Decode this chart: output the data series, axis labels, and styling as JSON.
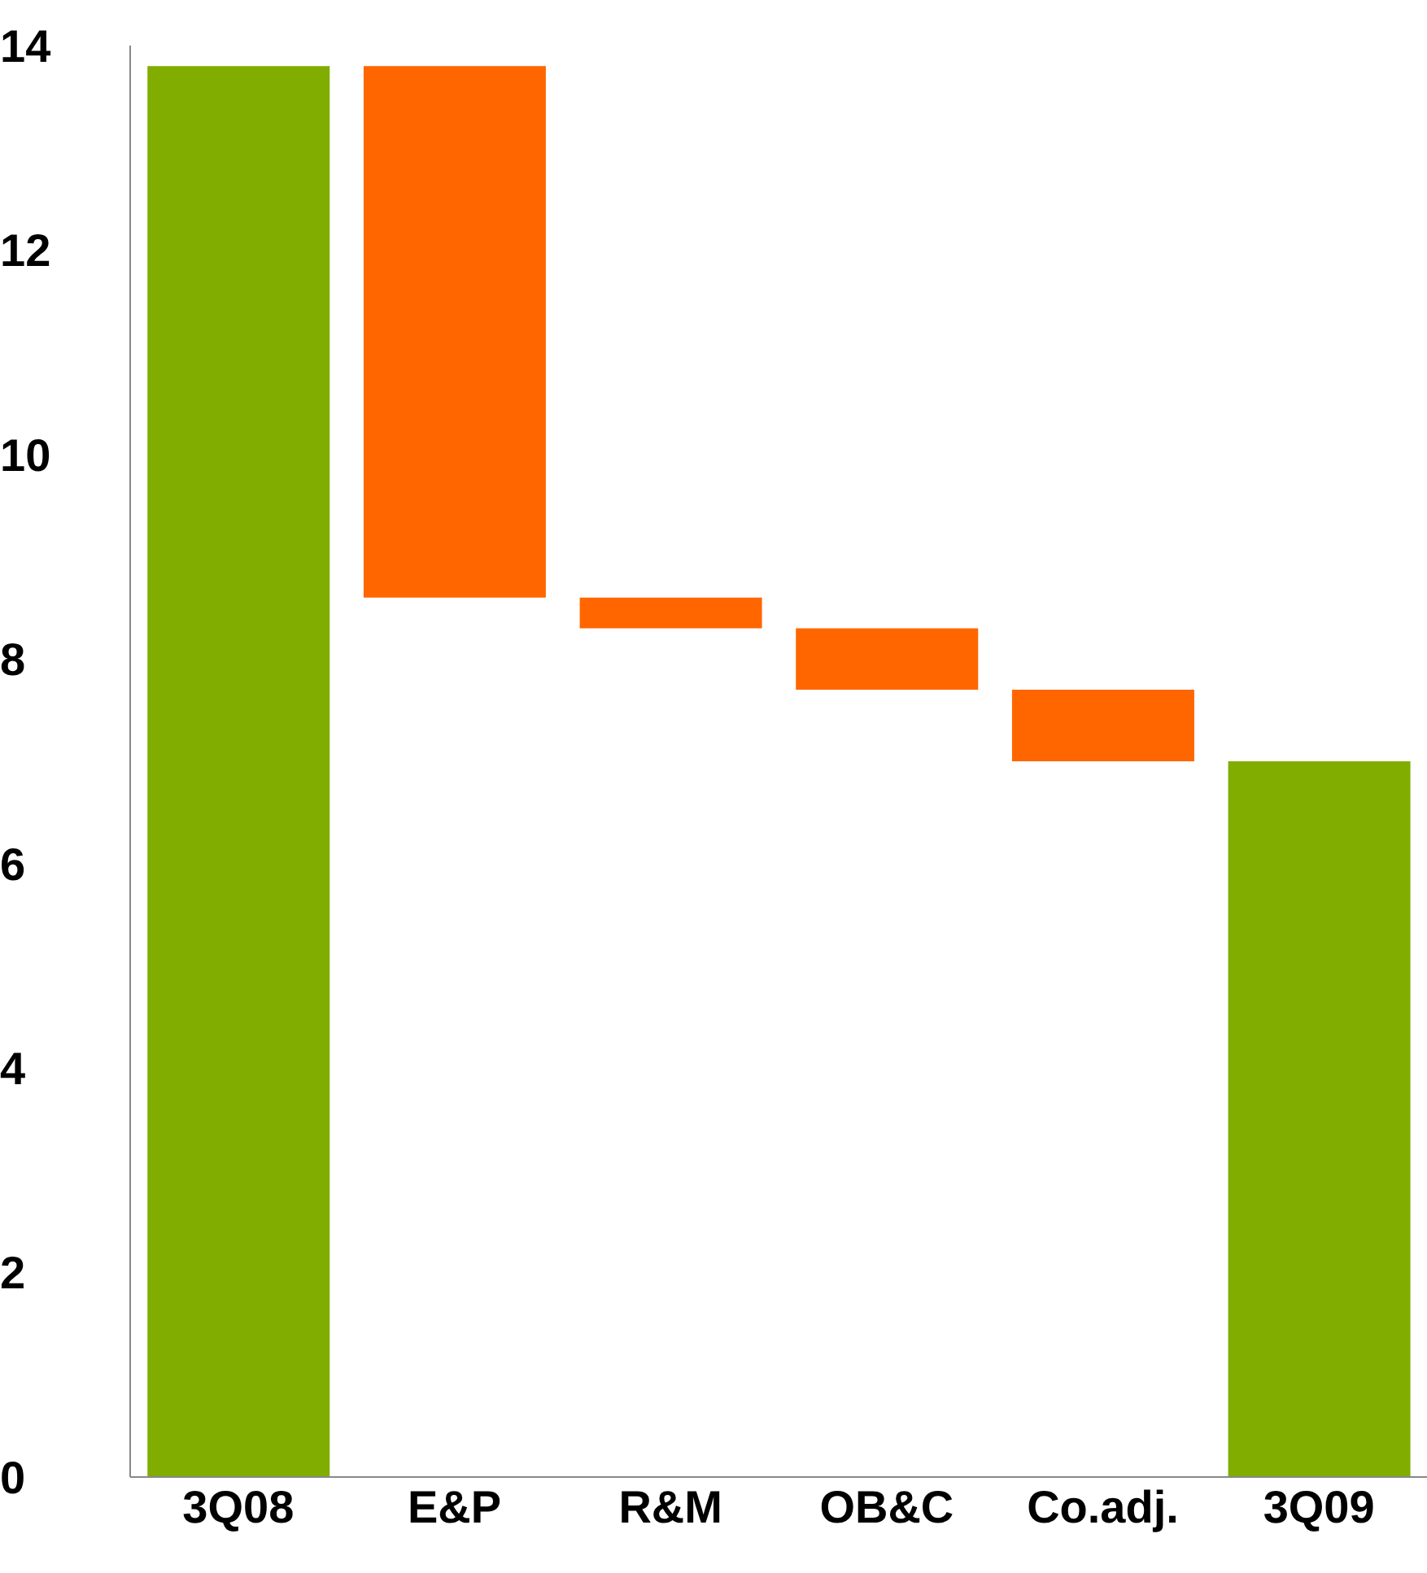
{
  "chart_data": {
    "type": "bar",
    "categories": [
      "3Q08",
      "E&P",
      "R&M",
      "OB&C",
      "Co.adj.",
      "3Q09"
    ],
    "values": [
      13.8,
      5.2,
      0.3,
      0.6,
      0.7,
      7.0
    ],
    "base": [
      0,
      8.6,
      8.3,
      7.7,
      7.0,
      0
    ],
    "colors": [
      "#80ad00",
      "#ff6600",
      "#ff6600",
      "#ff6600",
      "#ff6600",
      "#80ad00"
    ],
    "ylim": [
      0,
      14
    ],
    "yticks": [
      0,
      2,
      4,
      6,
      8,
      10,
      12,
      14
    ],
    "grid": false,
    "legend": false
  }
}
